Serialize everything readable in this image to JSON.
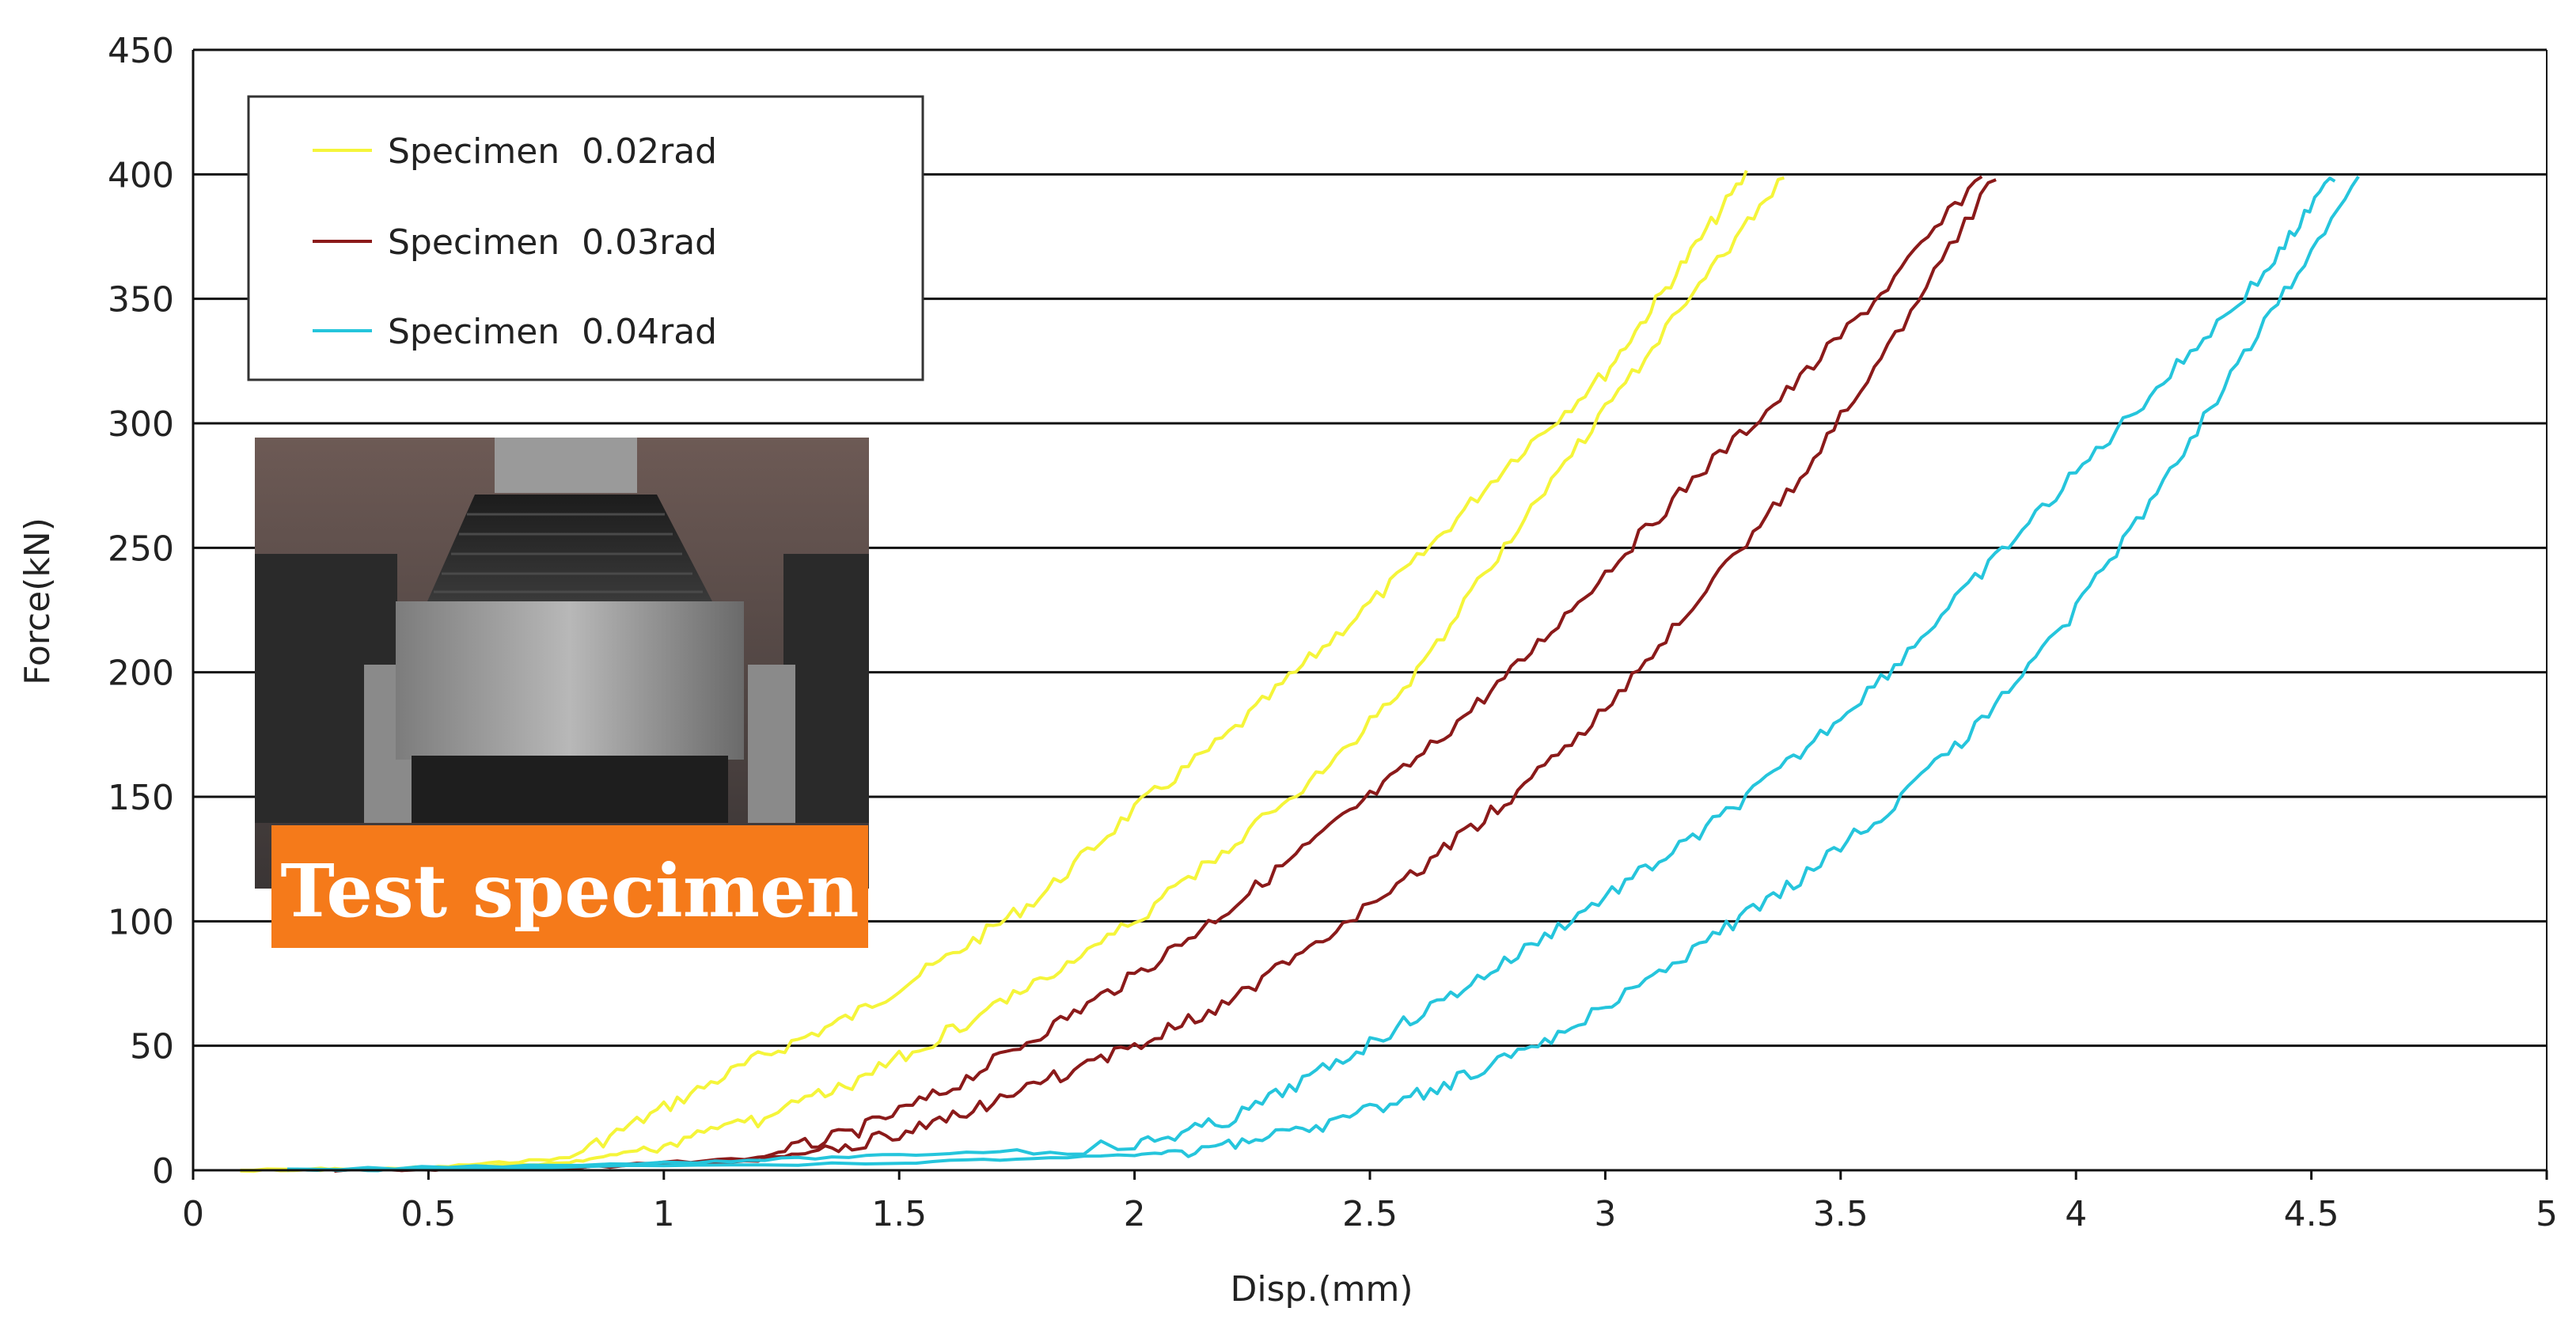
{
  "chart_data": {
    "type": "line",
    "title": "",
    "xlabel": "Disp.(mm)",
    "ylabel": "Force(kN)",
    "xlim": [
      0,
      5
    ],
    "ylim": [
      0,
      450
    ],
    "x_ticks": [
      "0",
      "0.5",
      "1",
      "1.5",
      "2",
      "2.5",
      "3",
      "3.5",
      "4",
      "4.5",
      "5"
    ],
    "y_ticks": [
      "0",
      "50",
      "100",
      "150",
      "200",
      "250",
      "300",
      "350",
      "400",
      "450"
    ],
    "grid": "horizontal",
    "legend_position": "top-left",
    "series": [
      {
        "name": "Specimen  0.02rad",
        "color": "#f5f53a",
        "loading": [
          [
            0.1,
            0
          ],
          [
            0.5,
            1
          ],
          [
            0.8,
            5
          ],
          [
            1.0,
            25
          ],
          [
            1.2,
            45
          ],
          [
            1.4,
            62
          ],
          [
            1.6,
            85
          ],
          [
            1.8,
            110
          ],
          [
            2.0,
            145
          ],
          [
            2.2,
            175
          ],
          [
            2.4,
            210
          ],
          [
            2.6,
            245
          ],
          [
            2.8,
            285
          ],
          [
            3.0,
            320
          ],
          [
            3.15,
            360
          ],
          [
            3.3,
            400
          ]
        ],
        "unloading": [
          [
            3.38,
            400
          ],
          [
            3.2,
            355
          ],
          [
            3.0,
            305
          ],
          [
            2.8,
            255
          ],
          [
            2.6,
            200
          ],
          [
            2.4,
            160
          ],
          [
            2.2,
            130
          ],
          [
            2.0,
            100
          ],
          [
            1.8,
            75
          ],
          [
            1.6,
            55
          ],
          [
            1.4,
            35
          ],
          [
            1.2,
            20
          ],
          [
            1.0,
            10
          ],
          [
            0.8,
            3
          ],
          [
            0.5,
            0.5
          ],
          [
            0.1,
            0
          ]
        ]
      },
      {
        "name": "Specimen  0.03rad",
        "color": "#8b1a1a",
        "loading": [
          [
            0.3,
            0
          ],
          [
            0.8,
            1
          ],
          [
            1.2,
            5
          ],
          [
            1.4,
            15
          ],
          [
            1.6,
            32
          ],
          [
            1.8,
            55
          ],
          [
            2.0,
            78
          ],
          [
            2.2,
            105
          ],
          [
            2.4,
            135
          ],
          [
            2.6,
            165
          ],
          [
            2.8,
            200
          ],
          [
            3.0,
            240
          ],
          [
            3.2,
            280
          ],
          [
            3.4,
            315
          ],
          [
            3.6,
            355
          ],
          [
            3.8,
            400
          ]
        ],
        "unloading": [
          [
            3.83,
            400
          ],
          [
            3.6,
            330
          ],
          [
            3.4,
            275
          ],
          [
            3.2,
            230
          ],
          [
            3.0,
            185
          ],
          [
            2.8,
            150
          ],
          [
            2.6,
            120
          ],
          [
            2.4,
            92
          ],
          [
            2.2,
            68
          ],
          [
            2.0,
            50
          ],
          [
            1.8,
            35
          ],
          [
            1.6,
            20
          ],
          [
            1.4,
            10
          ],
          [
            1.2,
            4
          ],
          [
            0.8,
            1
          ],
          [
            0.3,
            0
          ]
        ]
      },
      {
        "name": "Specimen  0.04rad",
        "color": "#25c5dc",
        "loading": [
          [
            0.2,
            0
          ],
          [
            1.0,
            3
          ],
          [
            1.5,
            6
          ],
          [
            2.0,
            10
          ],
          [
            2.2,
            20
          ],
          [
            2.4,
            40
          ],
          [
            2.6,
            62
          ],
          [
            2.8,
            85
          ],
          [
            3.0,
            110
          ],
          [
            3.2,
            135
          ],
          [
            3.4,
            165
          ],
          [
            3.6,
            200
          ],
          [
            3.8,
            240
          ],
          [
            4.0,
            280
          ],
          [
            4.2,
            320
          ],
          [
            4.4,
            360
          ],
          [
            4.55,
            400
          ]
        ],
        "unloading": [
          [
            4.6,
            400
          ],
          [
            4.4,
            340
          ],
          [
            4.2,
            280
          ],
          [
            4.0,
            225
          ],
          [
            3.8,
            180
          ],
          [
            3.6,
            145
          ],
          [
            3.4,
            115
          ],
          [
            3.2,
            90
          ],
          [
            3.0,
            65
          ],
          [
            2.8,
            45
          ],
          [
            2.6,
            30
          ],
          [
            2.4,
            18
          ],
          [
            2.2,
            10
          ],
          [
            2.0,
            6
          ],
          [
            1.5,
            3
          ],
          [
            0.5,
            0.5
          ],
          [
            0.2,
            0
          ]
        ]
      }
    ]
  },
  "inset_photo": {
    "caption": "Test specimen",
    "caption_bg": "#f57a1a"
  }
}
